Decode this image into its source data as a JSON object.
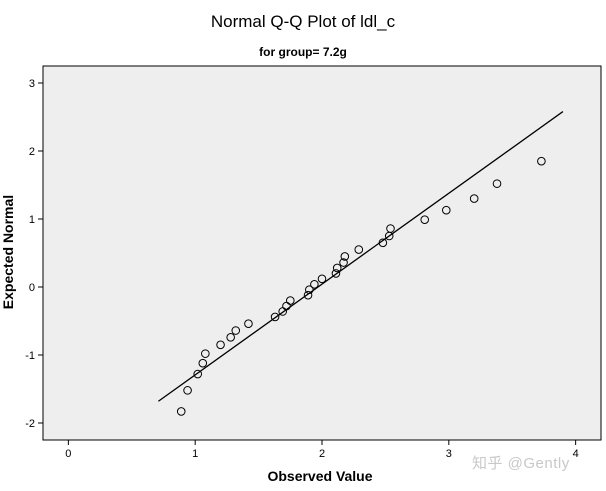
{
  "chart_data": {
    "type": "scatter",
    "title": "Normal Q-Q Plot of ldl_c",
    "subtitle": "for group= 7.2g",
    "xlabel": "Observed Value",
    "ylabel": "Expected Normal",
    "xlim": [
      -0.2,
      4.2
    ],
    "ylim": [
      -2.25,
      3.25
    ],
    "xticks": [
      "0",
      "1",
      "2",
      "3",
      "4"
    ],
    "yticks": [
      "-2",
      "-1",
      "0",
      "1",
      "2",
      "3"
    ],
    "grid": false,
    "plot_background": "#eeeeee",
    "marker": "open-circle",
    "points": [
      {
        "x": 0.89,
        "y": -1.83
      },
      {
        "x": 0.94,
        "y": -1.52
      },
      {
        "x": 1.02,
        "y": -1.28
      },
      {
        "x": 1.06,
        "y": -1.12
      },
      {
        "x": 1.08,
        "y": -0.98
      },
      {
        "x": 1.2,
        "y": -0.85
      },
      {
        "x": 1.28,
        "y": -0.74
      },
      {
        "x": 1.32,
        "y": -0.64
      },
      {
        "x": 1.42,
        "y": -0.54
      },
      {
        "x": 1.63,
        "y": -0.44
      },
      {
        "x": 1.69,
        "y": -0.36
      },
      {
        "x": 1.72,
        "y": -0.28
      },
      {
        "x": 1.75,
        "y": -0.2
      },
      {
        "x": 1.89,
        "y": -0.12
      },
      {
        "x": 1.9,
        "y": -0.04
      },
      {
        "x": 1.94,
        "y": 0.04
      },
      {
        "x": 2.0,
        "y": 0.12
      },
      {
        "x": 2.11,
        "y": 0.2
      },
      {
        "x": 2.12,
        "y": 0.28
      },
      {
        "x": 2.17,
        "y": 0.36
      },
      {
        "x": 2.18,
        "y": 0.45
      },
      {
        "x": 2.29,
        "y": 0.55
      },
      {
        "x": 2.48,
        "y": 0.65
      },
      {
        "x": 2.53,
        "y": 0.75
      },
      {
        "x": 2.54,
        "y": 0.86
      },
      {
        "x": 2.81,
        "y": 0.99
      },
      {
        "x": 2.98,
        "y": 1.13
      },
      {
        "x": 3.2,
        "y": 1.3
      },
      {
        "x": 3.38,
        "y": 1.52
      },
      {
        "x": 3.73,
        "y": 1.85
      }
    ],
    "reference_line": {
      "x": [
        0.71,
        3.9
      ],
      "y": [
        -1.68,
        2.58
      ]
    }
  },
  "watermark": "知乎 @Gently"
}
